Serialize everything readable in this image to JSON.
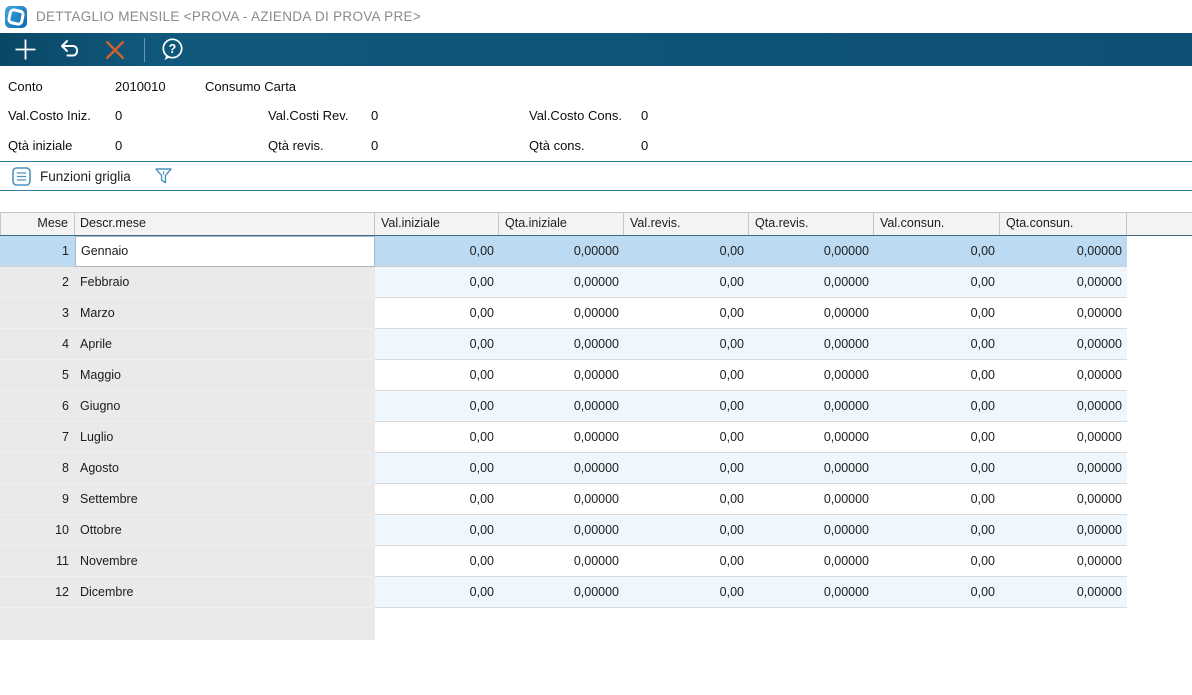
{
  "window": {
    "title": "DETTAGLIO MENSILE <PROVA - AZIENDA DI PROVA PRE>"
  },
  "toolbar": {
    "buttons": [
      {
        "icon": "plus-icon"
      },
      {
        "icon": "undo-icon"
      },
      {
        "icon": "close-icon"
      },
      {
        "icon": "help-icon"
      }
    ]
  },
  "fields": {
    "account": {
      "label": "Conto",
      "code": "2010010",
      "description": "Consumo Carta"
    },
    "rows": [
      [
        {
          "label": "Val.Costo Iniz.",
          "value": "0"
        },
        {
          "label": "Val.Costi Rev.",
          "value": "0"
        },
        {
          "label": "Val.Costo Cons.",
          "value": "0"
        }
      ],
      [
        {
          "label": "Qtà iniziale",
          "value": "0"
        },
        {
          "label": "Qtà revis.",
          "value": "0"
        },
        {
          "label": "Qtà cons.",
          "value": "0"
        }
      ]
    ]
  },
  "grid_toolbar": {
    "label": "Funzioni griglia",
    "icons": [
      "grid-functions-icon",
      "filter-icon"
    ]
  },
  "table": {
    "columns": [
      "Mese",
      "Descr.mese",
      "Val.iniziale",
      "Qta.iniziale",
      "Val.revis.",
      "Qta.revis.",
      "Val.consun.",
      "Qta.consun."
    ],
    "selected_row_index": 0,
    "rows": [
      [
        "1",
        "Gennaio",
        "0,00",
        "0,00000",
        "0,00",
        "0,00000",
        "0,00",
        "0,00000"
      ],
      [
        "2",
        "Febbraio",
        "0,00",
        "0,00000",
        "0,00",
        "0,00000",
        "0,00",
        "0,00000"
      ],
      [
        "3",
        "Marzo",
        "0,00",
        "0,00000",
        "0,00",
        "0,00000",
        "0,00",
        "0,00000"
      ],
      [
        "4",
        "Aprile",
        "0,00",
        "0,00000",
        "0,00",
        "0,00000",
        "0,00",
        "0,00000"
      ],
      [
        "5",
        "Maggio",
        "0,00",
        "0,00000",
        "0,00",
        "0,00000",
        "0,00",
        "0,00000"
      ],
      [
        "6",
        "Giugno",
        "0,00",
        "0,00000",
        "0,00",
        "0,00000",
        "0,00",
        "0,00000"
      ],
      [
        "7",
        "Luglio",
        "0,00",
        "0,00000",
        "0,00",
        "0,00000",
        "0,00",
        "0,00000"
      ],
      [
        "8",
        "Agosto",
        "0,00",
        "0,00000",
        "0,00",
        "0,00000",
        "0,00",
        "0,00000"
      ],
      [
        "9",
        "Settembre",
        "0,00",
        "0,00000",
        "0,00",
        "0,00000",
        "0,00",
        "0,00000"
      ],
      [
        "10",
        "Ottobre",
        "0,00",
        "0,00000",
        "0,00",
        "0,00000",
        "0,00",
        "0,00000"
      ],
      [
        "11",
        "Novembre",
        "0,00",
        "0,00000",
        "0,00",
        "0,00000",
        "0,00",
        "0,00000"
      ],
      [
        "12",
        "Dicembre",
        "0,00",
        "0,00000",
        "0,00",
        "0,00000",
        "0,00",
        "0,00000"
      ]
    ]
  },
  "colors": {
    "toolbar_bg": "#0d5174",
    "close_icon": "#d2612e",
    "accent_line": "#2d7da6",
    "selected_row": "#bcdaf2",
    "row_stripe": "#eef7fd",
    "fixed_columns_bg": "#eaeaea",
    "icon_blue": "#4d93c0",
    "logo_blue": "#1786c8",
    "title_text": "#8a8a8a"
  }
}
